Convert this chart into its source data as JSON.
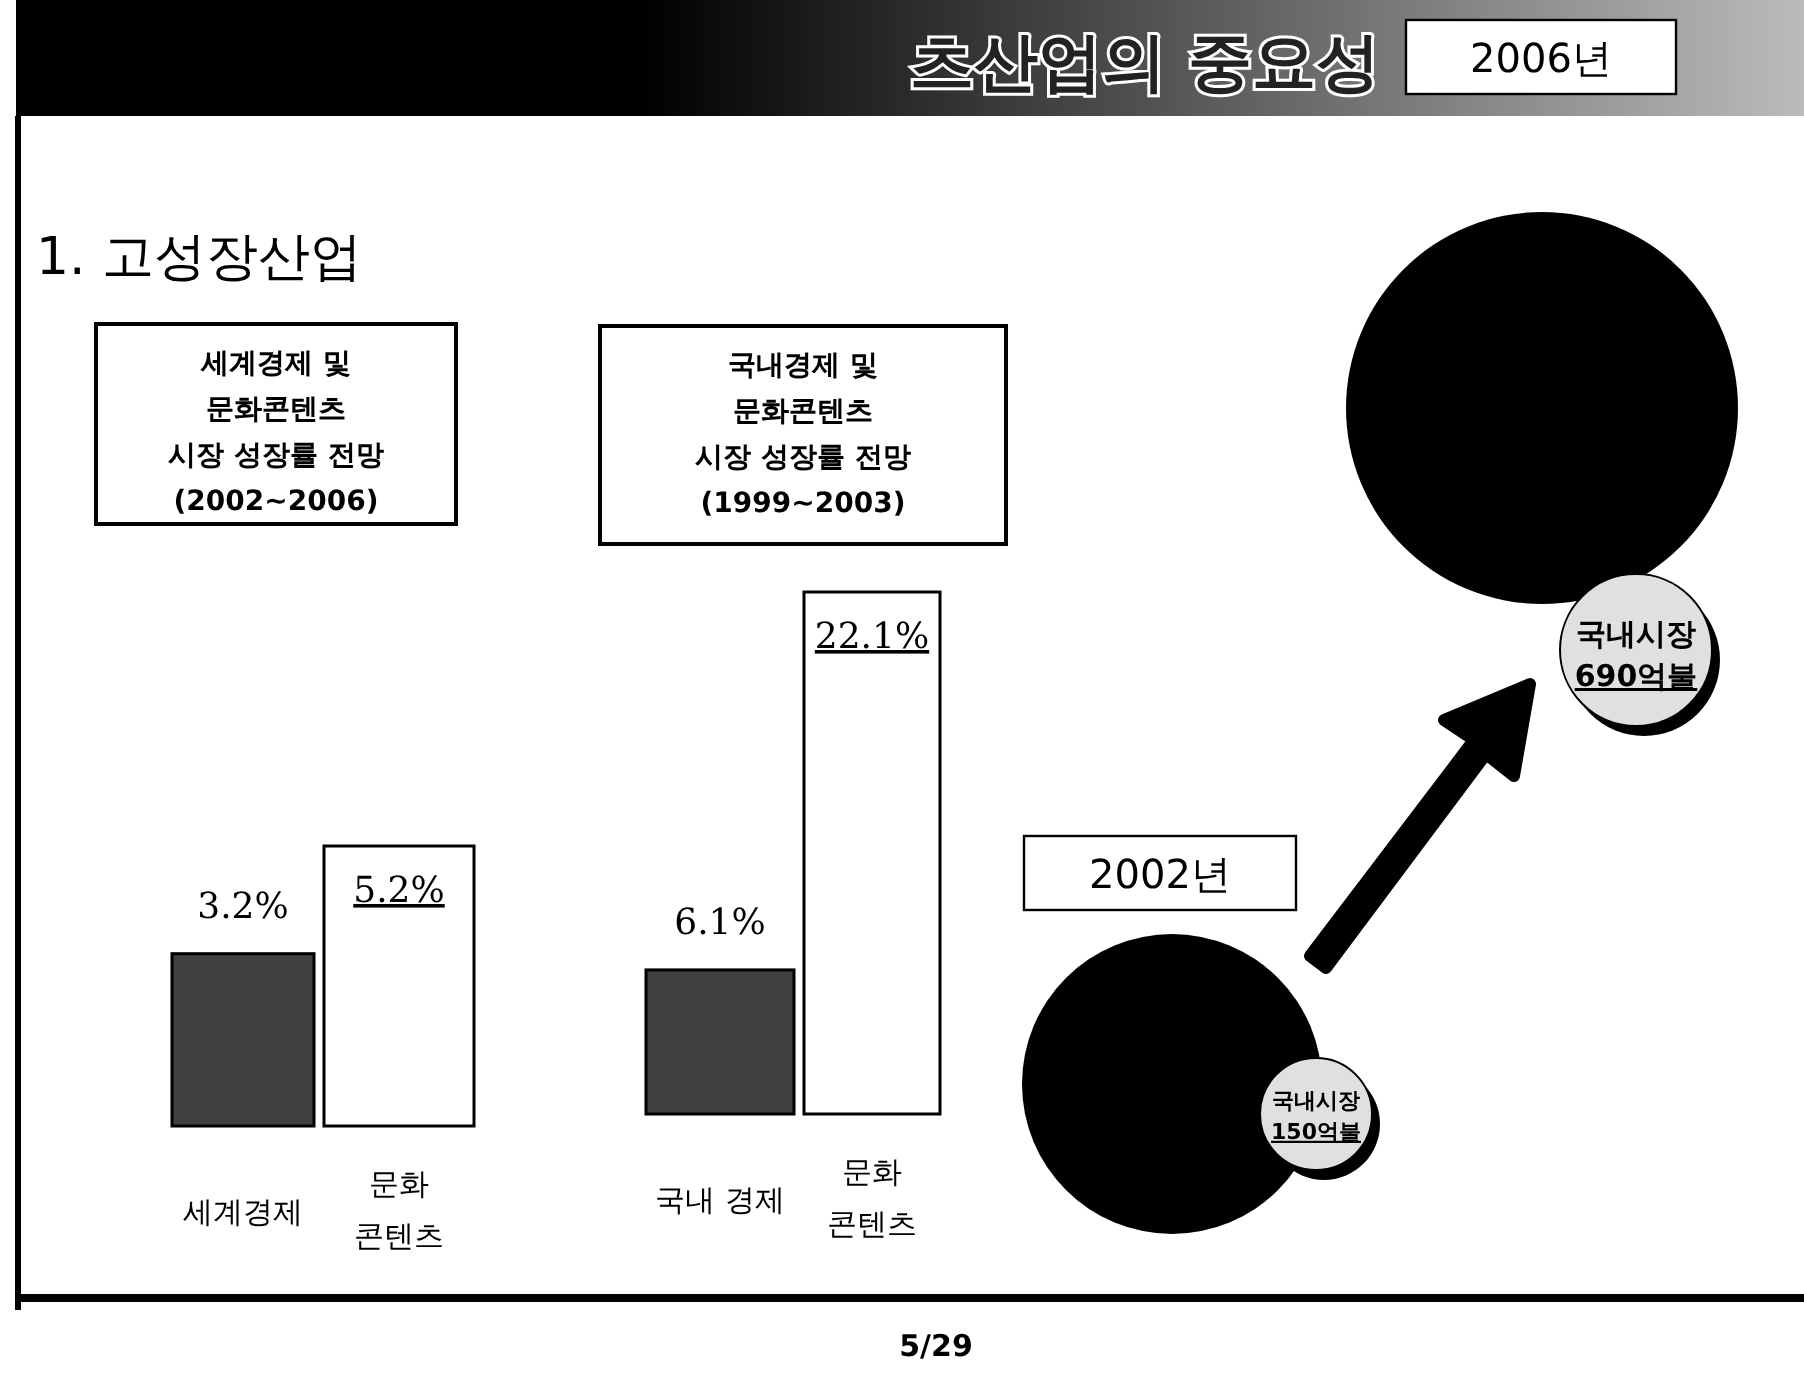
{
  "chart_data": [
    {
      "type": "other",
      "title": "츠산업의 중요성",
      "subtitle": "1. 고성장산업",
      "annotations": [
        "5/29"
      ]
    },
    {
      "type": "bar",
      "title": "세계경제 및\n문화콘텐츠\n시장 성장률 전망\n(2002~2006)",
      "categories": [
        "세계경제",
        "문화\n콘텐츠"
      ],
      "values": [
        3.2,
        5.2
      ],
      "colors": [
        "#404040",
        "#ffffff"
      ],
      "value_labels": [
        "3.2%",
        "5.2%"
      ]
    },
    {
      "type": "bar",
      "title": "국내경제 및\n문화콘텐츠\n시장 성장률 전망\n(1999~2003)",
      "categories": [
        "국내 경제",
        "문화\n콘텐츠"
      ],
      "values": [
        6.1,
        22.1
      ],
      "colors": [
        "#404040",
        "#ffffff"
      ],
      "value_labels": [
        "6.1%",
        "22.1%"
      ]
    },
    {
      "type": "other",
      "annotations": [
        "2006년",
        "국내시장\n690억불",
        "2002년",
        "국내시장\n150억불"
      ]
    }
  ]
}
